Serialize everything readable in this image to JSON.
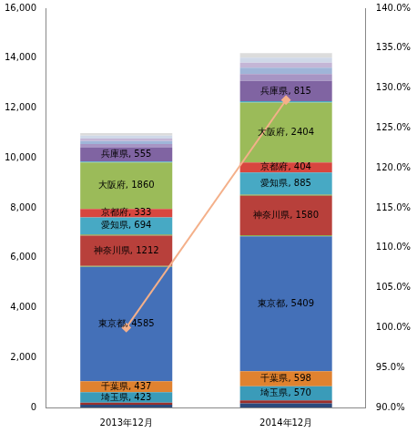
{
  "chart_data": {
    "type": "bar",
    "stacked": true,
    "grid": false,
    "data_labels": true,
    "categories": [
      "2013年12月",
      "2014年12月"
    ],
    "ylim": [
      0,
      16000
    ],
    "yticks": [
      0,
      {
        "value": 2000,
        "label": "2,000"
      },
      {
        "value": 4000,
        "label": "4,000"
      },
      {
        "value": 6000,
        "label": "6,000"
      },
      {
        "value": 8000,
        "label": "8,000"
      },
      {
        "value": 10000,
        "label": "10,000"
      },
      {
        "value": 12000,
        "label": "12,000"
      },
      {
        "value": 14000,
        "label": "14,000"
      },
      {
        "value": 16000,
        "label": "16,000"
      }
    ],
    "y2lim": [
      90,
      140
    ],
    "y2ticks": [
      {
        "value": 90,
        "label": "90.0%"
      },
      {
        "value": 95,
        "label": "95.0%"
      },
      {
        "value": 100,
        "label": "100.0%"
      },
      {
        "value": 105,
        "label": "105.0%"
      },
      {
        "value": 110,
        "label": "110.0%"
      },
      {
        "value": 115,
        "label": "115.0%"
      },
      {
        "value": 120,
        "label": "120.0%"
      },
      {
        "value": 125,
        "label": "125.0%"
      },
      {
        "value": 130,
        "label": "130.0%"
      },
      {
        "value": 135,
        "label": "135.0%"
      },
      {
        "value": 140,
        "label": "140.0%"
      }
    ],
    "series": [
      {
        "name": null,
        "color": "#2c4a7c",
        "values": [
          110,
          160
        ],
        "data_labels": false
      },
      {
        "name": null,
        "color": "#9b2f2b",
        "values": [
          80,
          120
        ],
        "data_labels": false
      },
      {
        "name": "埼玉県",
        "color": "#3a9bb9",
        "values": [
          423,
          570
        ],
        "value_labels": [
          "埼玉県, 423",
          "埼玉県, 570"
        ]
      },
      {
        "name": "千葉県",
        "color": "#e0822f",
        "values": [
          437,
          598
        ],
        "value_labels": [
          "千葉県, 437",
          "千葉県, 598"
        ]
      },
      {
        "name": "東京都",
        "color": "#4470b8",
        "values": [
          4585,
          5409
        ],
        "value_labels": [
          "東京都, 4585",
          "東京都, 5409"
        ]
      },
      {
        "name": null,
        "color": "#8fb04f",
        "values": [
          40,
          50
        ],
        "data_labels": false
      },
      {
        "name": "神奈川県",
        "color": "#b8403b",
        "values": [
          1212,
          1580
        ],
        "value_labels": [
          "神奈川県, 1212",
          "神奈川県, 1580"
        ]
      },
      {
        "name": null,
        "color": "#7d9c45",
        "values": [
          40,
          40
        ],
        "data_labels": false
      },
      {
        "name": "愛知県",
        "color": "#47a9c4",
        "values": [
          694,
          885
        ],
        "value_labels": [
          "愛知県, 694",
          "愛知県, 885"
        ]
      },
      {
        "name": "京都府",
        "color": "#d8463f",
        "values": [
          333,
          404
        ],
        "value_labels": [
          "京都府, 333",
          "京都府, 404"
        ]
      },
      {
        "name": "大阪府",
        "color": "#9bbb59",
        "values": [
          1860,
          2404
        ],
        "value_labels": [
          "大阪府, 1860",
          "大阪府, 2404"
        ]
      },
      {
        "name": null,
        "color": "#4bacc6",
        "values": [
          40,
          50
        ],
        "data_labels": false
      },
      {
        "name": "兵庫県",
        "color": "#8064a2",
        "values": [
          555,
          815
        ],
        "value_labels": [
          "兵庫県, 555",
          "兵庫県, 815"
        ]
      },
      {
        "name": null,
        "color": "#a795c4",
        "values": [
          150,
          280
        ],
        "data_labels": false
      },
      {
        "name": null,
        "color": "#9fb5d8",
        "values": [
          120,
          250
        ],
        "data_labels": false
      },
      {
        "name": null,
        "color": "#c4b6d6",
        "values": [
          100,
          200
        ],
        "data_labels": false
      },
      {
        "name": null,
        "color": "#cfd8e8",
        "values": [
          120,
          200
        ],
        "data_labels": false
      },
      {
        "name": null,
        "color": "#dcdcdc",
        "values": [
          100,
          185
        ],
        "data_labels": false
      },
      {
        "name": null,
        "type": "line",
        "axis": "y2",
        "color": "#f4b08a",
        "marker": "diamond",
        "values": [
          100,
          128.5
        ]
      }
    ]
  }
}
